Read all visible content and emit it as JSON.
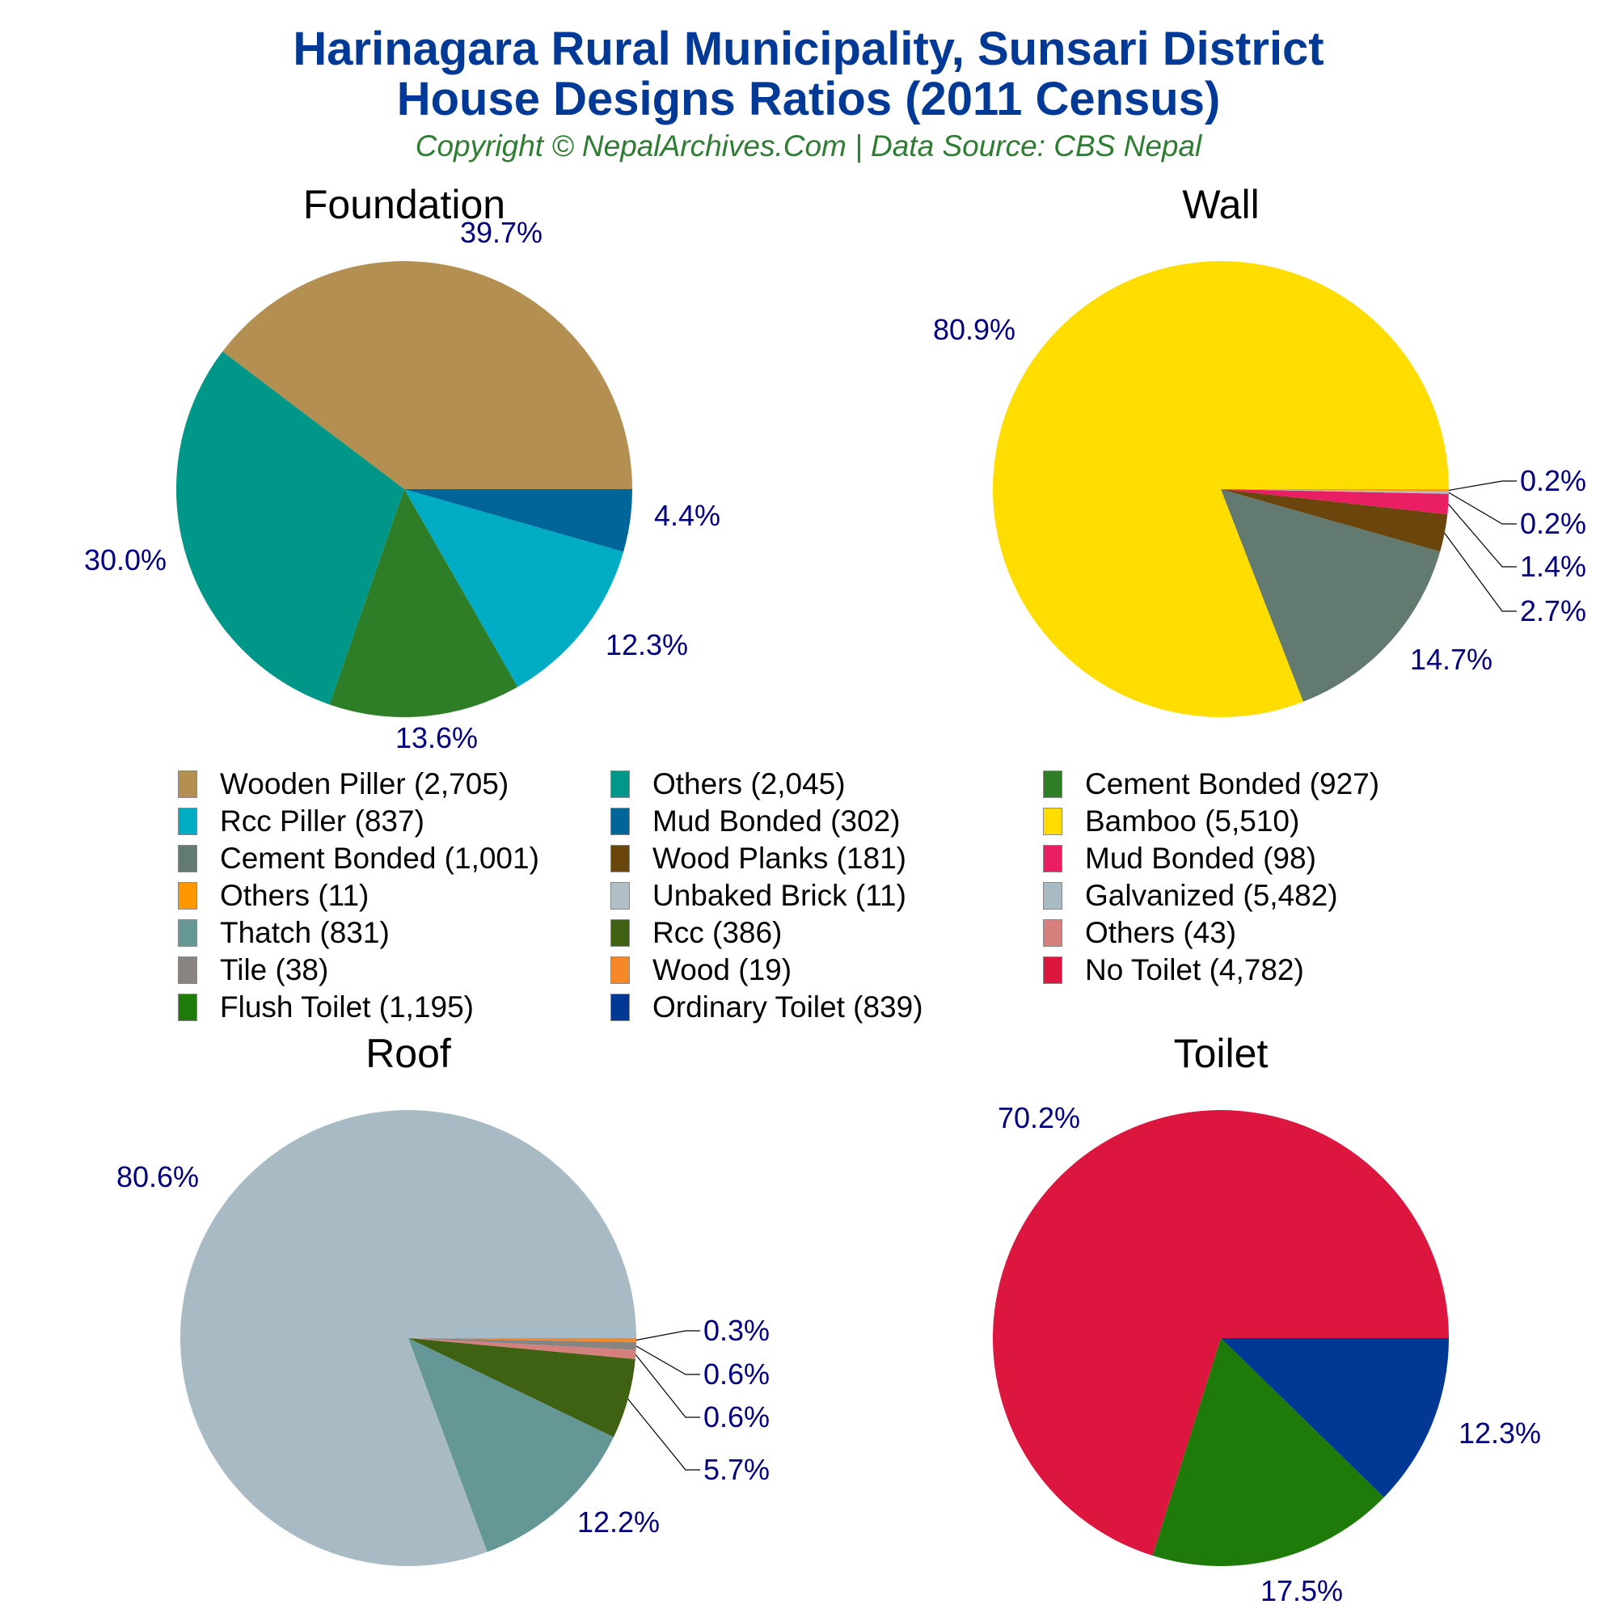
{
  "header": {
    "title_line1": "Harinagara Rural Municipality, Sunsari District",
    "title_line2": "House Designs Ratios (2011 Census)",
    "subtitle": "Copyright © NepalArchives.Com | Data Source: CBS Nepal"
  },
  "legend": [
    {
      "label": "Wooden Piller (2,705)",
      "color": "#b38f52"
    },
    {
      "label": "Others (2,045)",
      "color": "#009688"
    },
    {
      "label": "Cement Bonded (927)",
      "color": "#2e7d27"
    },
    {
      "label": "Rcc Piller (837)",
      "color": "#00acc4"
    },
    {
      "label": "Mud Bonded (302)",
      "color": "#006699"
    },
    {
      "label": "Bamboo (5,510)",
      "color": "#ffdd00"
    },
    {
      "label": "Cement Bonded (1,001)",
      "color": "#637a70"
    },
    {
      "label": "Wood Planks (181)",
      "color": "#6b460c"
    },
    {
      "label": "Mud Bonded (98)",
      "color": "#e91e63"
    },
    {
      "label": "Others (11)",
      "color": "#ff9800"
    },
    {
      "label": "Unbaked Brick (11)",
      "color": "#b0bec5"
    },
    {
      "label": "Galvanized (5,482)",
      "color": "#a8bac3"
    },
    {
      "label": "Thatch (831)",
      "color": "#659797"
    },
    {
      "label": "Rcc (386)",
      "color": "#3f6212"
    },
    {
      "label": "Others (43)",
      "color": "#d6807e"
    },
    {
      "label": "Tile (38)",
      "color": "#8a8480"
    },
    {
      "label": "Wood (19)",
      "color": "#f5892a"
    },
    {
      "label": "No Toilet (4,782)",
      "color": "#dc163e"
    },
    {
      "label": "Flush Toilet (1,195)",
      "color": "#1e7b0a"
    },
    {
      "label": "Ordinary Toilet (839)",
      "color": "#003893"
    }
  ],
  "chart_data": [
    {
      "type": "pie",
      "title": "Foundation",
      "center": [
        500,
        605
      ],
      "radius": 282,
      "slices": [
        {
          "label": "Wooden Piller",
          "value": 2705,
          "percent": 39.7,
          "color": "#b38f52",
          "label_pos": [
            620,
            300
          ]
        },
        {
          "label": "Others",
          "value": 2045,
          "percent": 30.0,
          "color": "#009688",
          "label_pos": [
            155,
            705
          ]
        },
        {
          "label": "Cement Bonded",
          "value": 927,
          "percent": 13.6,
          "color": "#2e7d27",
          "label_pos": [
            540,
            925
          ]
        },
        {
          "label": "Rcc Piller",
          "value": 837,
          "percent": 12.3,
          "color": "#00acc4",
          "label_pos": [
            800,
            810
          ]
        },
        {
          "label": "Mud Bonded",
          "value": 302,
          "percent": 4.4,
          "color": "#006699",
          "label_pos": [
            850,
            650
          ]
        }
      ]
    },
    {
      "type": "pie",
      "title": "Wall",
      "center": [
        1510,
        605
      ],
      "radius": 282,
      "slices": [
        {
          "label": "Bamboo",
          "value": 5510,
          "percent": 80.9,
          "color": "#ffdd00",
          "label_pos": [
            1205,
            420
          ]
        },
        {
          "label": "Cement Bonded",
          "value": 1001,
          "percent": 14.7,
          "color": "#637a70",
          "label_pos": [
            1795,
            828
          ]
        },
        {
          "label": "Wood Planks",
          "value": 181,
          "percent": 2.7,
          "color": "#6b460c",
          "label_pos": [
            1880,
            768
          ],
          "leader": true
        },
        {
          "label": "Mud Bonded",
          "value": 98,
          "percent": 1.4,
          "color": "#e91e63",
          "label_pos": [
            1880,
            713
          ],
          "leader": true
        },
        {
          "label": "Unbaked Brick",
          "value": 11,
          "percent": 0.2,
          "color": "#b0bec5",
          "label_pos": [
            1880,
            660
          ],
          "leader": true
        },
        {
          "label": "Others",
          "value": 11,
          "percent": 0.2,
          "color": "#ff9800",
          "label_pos": [
            1880,
            607
          ],
          "leader": true
        }
      ]
    },
    {
      "type": "pie",
      "title": "Roof",
      "center": [
        505,
        1655
      ],
      "radius": 282,
      "slices": [
        {
          "label": "Galvanized",
          "value": 5482,
          "percent": 80.6,
          "color": "#a8bac3",
          "label_pos": [
            195,
            1468
          ]
        },
        {
          "label": "Thatch",
          "value": 831,
          "percent": 12.2,
          "color": "#659797",
          "label_pos": [
            765,
            1895
          ]
        },
        {
          "label": "Rcc",
          "value": 386,
          "percent": 5.7,
          "color": "#3f6212",
          "label_pos": [
            870,
            1830
          ],
          "leader": true
        },
        {
          "label": "Others",
          "value": 43,
          "percent": 0.6,
          "color": "#d6807e",
          "label_pos": [
            870,
            1765
          ],
          "leader": true
        },
        {
          "label": "Tile",
          "value": 38,
          "percent": 0.6,
          "color": "#8a8480",
          "label_pos": [
            870,
            1712
          ],
          "leader": true
        },
        {
          "label": "Wood",
          "value": 19,
          "percent": 0.3,
          "color": "#f5892a",
          "label_pos": [
            870,
            1658
          ],
          "leader": true
        }
      ]
    },
    {
      "type": "pie",
      "title": "Toilet",
      "center": [
        1510,
        1655
      ],
      "radius": 282,
      "slices": [
        {
          "label": "No Toilet",
          "value": 4782,
          "percent": 70.2,
          "color": "#dc163e",
          "label_pos": [
            1285,
            1395
          ]
        },
        {
          "label": "Flush Toilet",
          "value": 1195,
          "percent": 17.5,
          "color": "#1e7b0a",
          "label_pos": [
            1610,
            1980
          ]
        },
        {
          "label": "Ordinary Toilet",
          "value": 839,
          "percent": 12.3,
          "color": "#003893",
          "label_pos": [
            1855,
            1785
          ]
        }
      ]
    }
  ]
}
